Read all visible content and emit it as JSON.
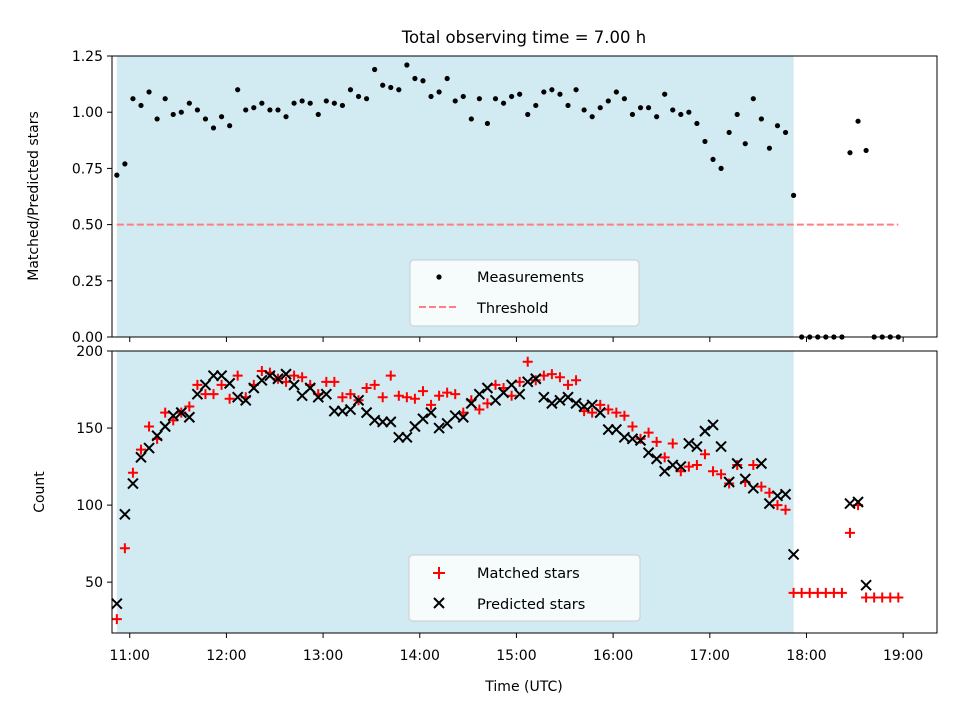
{
  "colors": {
    "span": "#add8e6",
    "measurement": "#000000",
    "threshold": "#ff7f7f",
    "matched": "#ff0000",
    "predicted": "#000000"
  },
  "chart_data": [
    {
      "type": "scatter",
      "title": "Total observing time = 7.00 h",
      "ylabel": "Matched/Predicted stars",
      "xlabel": "",
      "xlim": [
        "10:49",
        "19:21"
      ],
      "ylim": [
        0,
        1.25
      ],
      "yticks": [
        "0.00",
        "0.25",
        "0.50",
        "0.75",
        "1.00",
        "1.25"
      ],
      "grid": false,
      "legend_position": "lower-center",
      "observing_span": [
        "10:52",
        "17:52"
      ],
      "threshold": {
        "name": "Threshold",
        "value": 0.5,
        "x": [
          "10:52",
          "18:57"
        ]
      },
      "series": [
        {
          "name": "Measurements",
          "x": [
            "10:52",
            "10:57",
            "11:02",
            "11:07",
            "11:12",
            "11:17",
            "11:22",
            "11:27",
            "11:32",
            "11:37",
            "11:42",
            "11:47",
            "11:52",
            "11:57",
            "12:02",
            "12:07",
            "12:12",
            "12:17",
            "12:22",
            "12:27",
            "12:32",
            "12:37",
            "12:42",
            "12:47",
            "12:52",
            "12:57",
            "13:02",
            "13:07",
            "13:12",
            "13:17",
            "13:22",
            "13:27",
            "13:32",
            "13:37",
            "13:42",
            "13:47",
            "13:52",
            "13:57",
            "14:02",
            "14:07",
            "14:12",
            "14:17",
            "14:22",
            "14:27",
            "14:32",
            "14:37",
            "14:42",
            "14:47",
            "14:52",
            "14:57",
            "15:02",
            "15:07",
            "15:12",
            "15:17",
            "15:22",
            "15:27",
            "15:32",
            "15:37",
            "15:42",
            "15:47",
            "15:52",
            "15:57",
            "16:02",
            "16:07",
            "16:12",
            "16:17",
            "16:22",
            "16:27",
            "16:32",
            "16:37",
            "16:42",
            "16:47",
            "16:52",
            "16:57",
            "17:02",
            "17:07",
            "17:12",
            "17:17",
            "17:22",
            "17:27",
            "17:32",
            "17:37",
            "17:42",
            "17:47",
            "17:52",
            "17:57",
            "18:02",
            "18:07",
            "18:12",
            "18:17",
            "18:22",
            "18:27",
            "18:32",
            "18:37",
            "18:42",
            "18:47",
            "18:52",
            "18:57"
          ],
          "y": [
            0.72,
            0.77,
            1.06,
            1.03,
            1.09,
            0.97,
            1.06,
            0.99,
            1.0,
            1.04,
            1.01,
            0.97,
            0.93,
            0.98,
            0.94,
            1.1,
            1.01,
            1.02,
            1.04,
            1.01,
            1.01,
            0.98,
            1.04,
            1.05,
            1.04,
            0.99,
            1.05,
            1.04,
            1.03,
            1.1,
            1.07,
            1.06,
            1.19,
            1.12,
            1.11,
            1.1,
            1.21,
            1.15,
            1.14,
            1.07,
            1.09,
            1.15,
            1.05,
            1.07,
            0.97,
            1.06,
            0.95,
            1.06,
            1.04,
            1.07,
            1.08,
            0.99,
            1.03,
            1.09,
            1.1,
            1.08,
            1.03,
            1.1,
            1.01,
            0.98,
            1.02,
            1.05,
            1.09,
            1.06,
            0.99,
            1.02,
            1.02,
            0.98,
            1.08,
            1.01,
            0.99,
            1.0,
            0.95,
            0.87,
            0.79,
            0.75,
            0.91,
            0.99,
            0.86,
            1.06,
            0.97,
            0.84,
            0.94,
            0.91,
            0.63,
            0.0,
            0.0,
            0.0,
            0.0,
            0.0,
            0.0,
            0.82,
            0.96,
            0.83,
            0.0,
            0.0,
            0.0,
            0.0
          ]
        }
      ]
    },
    {
      "type": "scatter",
      "title": "",
      "xlabel": "Time (UTC)",
      "ylabel": "Count",
      "xlim": [
        "10:49",
        "19:21"
      ],
      "ylim": [
        17,
        200
      ],
      "xticks": [
        "11:00",
        "12:00",
        "13:00",
        "14:00",
        "15:00",
        "16:00",
        "17:00",
        "18:00",
        "19:00"
      ],
      "yticks": [
        "50",
        "100",
        "150",
        "200"
      ],
      "grid": false,
      "legend_position": "lower-center",
      "observing_span": [
        "10:52",
        "17:52"
      ],
      "series": [
        {
          "name": "Matched stars",
          "x": [
            "10:52",
            "10:57",
            "11:02",
            "11:07",
            "11:12",
            "11:17",
            "11:22",
            "11:27",
            "11:32",
            "11:37",
            "11:42",
            "11:47",
            "11:52",
            "11:57",
            "12:02",
            "12:07",
            "12:12",
            "12:17",
            "12:22",
            "12:27",
            "12:32",
            "12:37",
            "12:42",
            "12:47",
            "12:52",
            "12:57",
            "13:02",
            "13:07",
            "13:12",
            "13:17",
            "13:22",
            "13:27",
            "13:32",
            "13:37",
            "13:42",
            "13:47",
            "13:52",
            "13:57",
            "14:02",
            "14:07",
            "14:12",
            "14:17",
            "14:22",
            "14:27",
            "14:32",
            "14:37",
            "14:42",
            "14:47",
            "14:52",
            "14:57",
            "15:02",
            "15:07",
            "15:12",
            "15:17",
            "15:22",
            "15:27",
            "15:32",
            "15:37",
            "15:42",
            "15:47",
            "15:52",
            "15:57",
            "16:02",
            "16:07",
            "16:12",
            "16:17",
            "16:22",
            "16:27",
            "16:32",
            "16:37",
            "16:42",
            "16:47",
            "16:52",
            "16:57",
            "17:02",
            "17:07",
            "17:12",
            "17:17",
            "17:22",
            "17:27",
            "17:32",
            "17:37",
            "17:42",
            "17:47",
            "17:52",
            "17:57",
            "18:02",
            "18:07",
            "18:12",
            "18:17",
            "18:22",
            "18:27",
            "18:32",
            "18:37",
            "18:42",
            "18:47",
            "18:52",
            "18:57"
          ],
          "y": [
            26,
            72,
            121,
            136,
            151,
            143,
            160,
            155,
            160,
            164,
            178,
            172,
            172,
            178,
            169,
            184,
            170,
            178,
            187,
            186,
            182,
            180,
            184,
            183,
            178,
            172,
            180,
            180,
            170,
            172,
            168,
            176,
            178,
            170,
            184,
            171,
            170,
            169,
            174,
            165,
            171,
            173,
            172,
            160,
            168,
            162,
            166,
            178,
            176,
            171,
            180,
            193,
            181,
            184,
            185,
            183,
            178,
            181,
            161,
            160,
            165,
            162,
            160,
            158,
            151,
            143,
            147,
            141,
            131,
            140,
            122,
            125,
            126,
            133,
            122,
            120,
            114,
            126,
            115,
            126,
            112,
            108,
            100,
            97,
            43,
            43,
            43,
            43,
            43,
            43,
            43,
            82,
            100,
            40,
            40,
            40,
            40,
            40
          ]
        },
        {
          "name": "Predicted stars",
          "x": [
            "10:52",
            "10:57",
            "11:02",
            "11:07",
            "11:12",
            "11:17",
            "11:22",
            "11:27",
            "11:32",
            "11:37",
            "11:42",
            "11:47",
            "11:52",
            "11:57",
            "12:02",
            "12:07",
            "12:12",
            "12:17",
            "12:22",
            "12:27",
            "12:32",
            "12:37",
            "12:42",
            "12:47",
            "12:52",
            "12:57",
            "13:02",
            "13:07",
            "13:12",
            "13:17",
            "13:22",
            "13:27",
            "13:32",
            "13:37",
            "13:42",
            "13:47",
            "13:52",
            "13:57",
            "14:02",
            "14:07",
            "14:12",
            "14:17",
            "14:22",
            "14:27",
            "14:32",
            "14:37",
            "14:42",
            "14:47",
            "14:52",
            "14:57",
            "15:02",
            "15:07",
            "15:12",
            "15:17",
            "15:22",
            "15:27",
            "15:32",
            "15:37",
            "15:42",
            "15:47",
            "15:52",
            "15:57",
            "16:02",
            "16:07",
            "16:12",
            "16:17",
            "16:22",
            "16:27",
            "16:32",
            "16:37",
            "16:42",
            "16:47",
            "16:52",
            "16:57",
            "17:02",
            "17:07",
            "17:12",
            "17:17",
            "17:22",
            "17:27",
            "17:32",
            "17:37",
            "17:42",
            "17:47",
            "17:52",
            "18:27",
            "18:32",
            "18:37"
          ],
          "y": [
            36,
            94,
            114,
            131,
            137,
            145,
            151,
            158,
            160,
            157,
            172,
            178,
            184,
            184,
            179,
            170,
            168,
            176,
            181,
            184,
            182,
            185,
            178,
            171,
            176,
            170,
            172,
            161,
            161,
            162,
            168,
            160,
            155,
            154,
            154,
            144,
            144,
            151,
            156,
            160,
            150,
            153,
            158,
            157,
            166,
            172,
            176,
            168,
            173,
            178,
            172,
            180,
            182,
            170,
            166,
            168,
            170,
            166,
            164,
            165,
            160,
            149,
            149,
            144,
            143,
            142,
            134,
            130,
            122,
            126,
            125,
            140,
            138,
            148,
            152,
            138,
            115,
            127,
            117,
            111,
            127,
            101,
            106,
            107,
            68,
            101,
            102,
            48
          ]
        }
      ]
    }
  ]
}
